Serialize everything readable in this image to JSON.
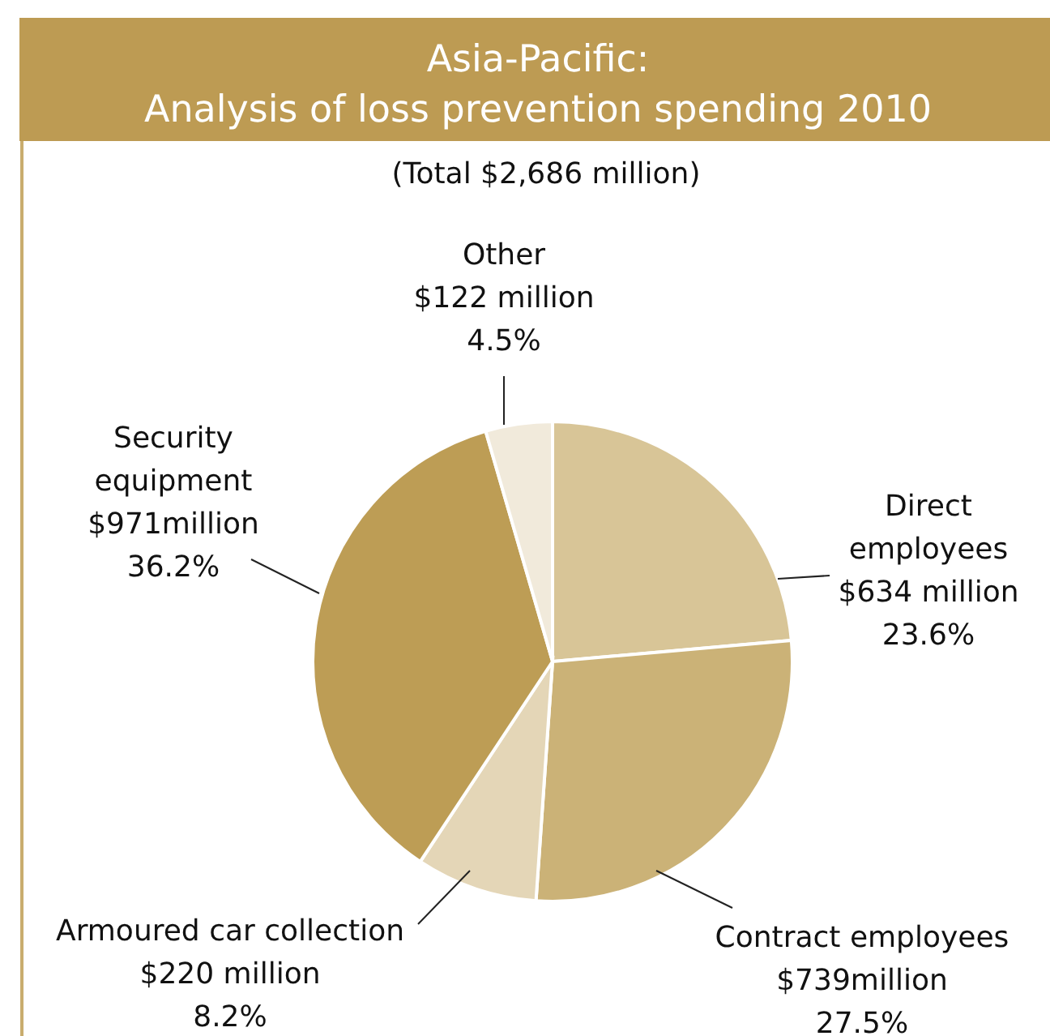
{
  "chart_data": {
    "type": "pie",
    "title": "Asia-Pacific:\nAnalysis of loss prevention spending 2010",
    "subtitle": "(Total $2,686 million)",
    "categories": [
      "Direct employees",
      "Contract employees",
      "Armoured car collection",
      "Security equipment",
      "Other"
    ],
    "values": [
      23.6,
      27.5,
      8.2,
      36.2,
      4.5
    ],
    "colors": [
      "#d8c597",
      "#cbb277",
      "#e4d6b7",
      "#bd9d55",
      "#f1eadb"
    ],
    "value_labels": [
      "$634 million\n23.6%",
      "$739million\n27.5%",
      "$220 million\n8.2%",
      "$971million\n36.2%",
      "$122 million\n4.5%"
    ]
  }
}
